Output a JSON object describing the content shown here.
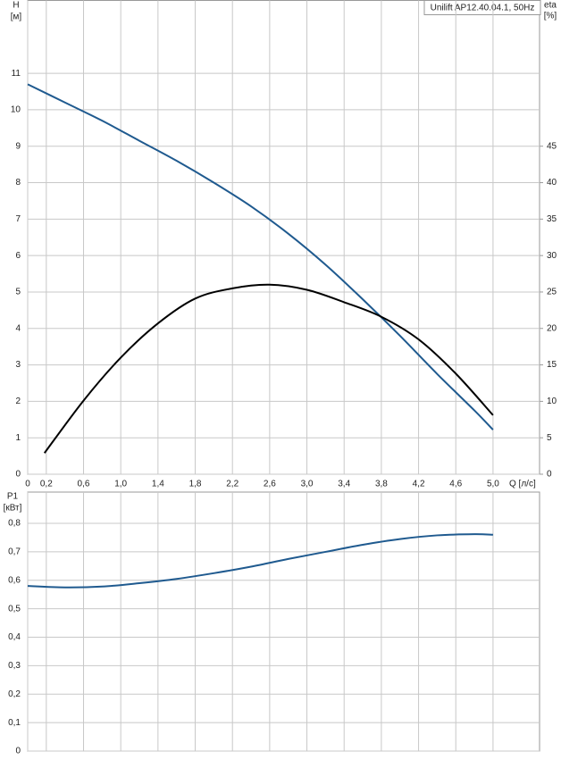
{
  "chart_data": [
    {
      "type": "line",
      "title": "Unilift AP12.40.04.1, 50Hz",
      "y_label": "H",
      "y_unit": "[м]",
      "y2_label": "eta",
      "y2_unit": "[%]",
      "x_label": "Q [л/с]",
      "xlim": [
        0,
        5.5
      ],
      "xticks": [
        0,
        {
          "value": 0.2,
          "label": "0,2"
        },
        {
          "value": 0.6,
          "label": "0,6"
        },
        {
          "value": 1.0,
          "label": "1,0"
        },
        {
          "value": 1.4,
          "label": "1,4"
        },
        {
          "value": 1.8,
          "label": "1,8"
        },
        {
          "value": 2.2,
          "label": "2,2"
        },
        {
          "value": 2.6,
          "label": "2,6"
        },
        {
          "value": 3.0,
          "label": "3,0"
        },
        {
          "value": 3.4,
          "label": "3,4"
        },
        {
          "value": 3.8,
          "label": "3,8"
        },
        {
          "value": 4.2,
          "label": "4,2"
        },
        {
          "value": 4.6,
          "label": "4,6"
        },
        {
          "value": 5.0,
          "label": "5,0"
        }
      ],
      "ylim": [
        0,
        13
      ],
      "yticks": [
        0,
        1,
        2,
        3,
        4,
        5,
        6,
        7,
        8,
        9,
        10,
        11
      ],
      "y2lim": [
        0,
        65
      ],
      "y2ticks": [
        0,
        5,
        10,
        15,
        20,
        25,
        30,
        35,
        40,
        45
      ],
      "grid": true,
      "series": [
        {
          "color": "#1f5a8f",
          "x": [
            0,
            0.4,
            0.8,
            1.2,
            1.6,
            2.0,
            2.4,
            2.8,
            3.2,
            3.6,
            4.0,
            4.4,
            4.8,
            5.0
          ],
          "values": [
            10.7,
            10.2,
            9.7,
            9.15,
            8.6,
            8.0,
            7.35,
            6.6,
            5.75,
            4.8,
            3.8,
            2.75,
            1.75,
            1.22
          ]
        },
        {
          "color": "#000000",
          "axis": "y2",
          "x": [
            0.18,
            0.6,
            1.0,
            1.4,
            1.8,
            2.2,
            2.6,
            3.0,
            3.4,
            3.8,
            4.2,
            4.6,
            5.0
          ],
          "values": [
            2.9,
            10.1,
            16.0,
            20.7,
            24.1,
            25.5,
            26.0,
            25.3,
            23.6,
            21.6,
            18.5,
            13.8,
            8.1
          ]
        }
      ]
    },
    {
      "type": "line",
      "y_label": "P1",
      "y_unit": "[кВт]",
      "xlim": [
        0,
        5.5
      ],
      "ylim": [
        0,
        0.91
      ],
      "yticks": [
        0,
        {
          "value": 0.1,
          "label": "0,1"
        },
        {
          "value": 0.2,
          "label": "0,2"
        },
        {
          "value": 0.3,
          "label": "0,3"
        },
        {
          "value": 0.4,
          "label": "0,4"
        },
        {
          "value": 0.5,
          "label": "0,5"
        },
        {
          "value": 0.6,
          "label": "0,6"
        },
        {
          "value": 0.7,
          "label": "0,7"
        },
        {
          "value": 0.8,
          "label": "0,8"
        }
      ],
      "grid": true,
      "series": [
        {
          "color": "#1f5a8f",
          "x": [
            0,
            0.4,
            0.8,
            1.2,
            1.6,
            2.0,
            2.4,
            2.8,
            3.2,
            3.6,
            4.0,
            4.4,
            4.8,
            5.0
          ],
          "values": [
            0.58,
            0.575,
            0.578,
            0.59,
            0.605,
            0.625,
            0.648,
            0.675,
            0.7,
            0.725,
            0.745,
            0.758,
            0.762,
            0.76
          ]
        }
      ]
    }
  ]
}
